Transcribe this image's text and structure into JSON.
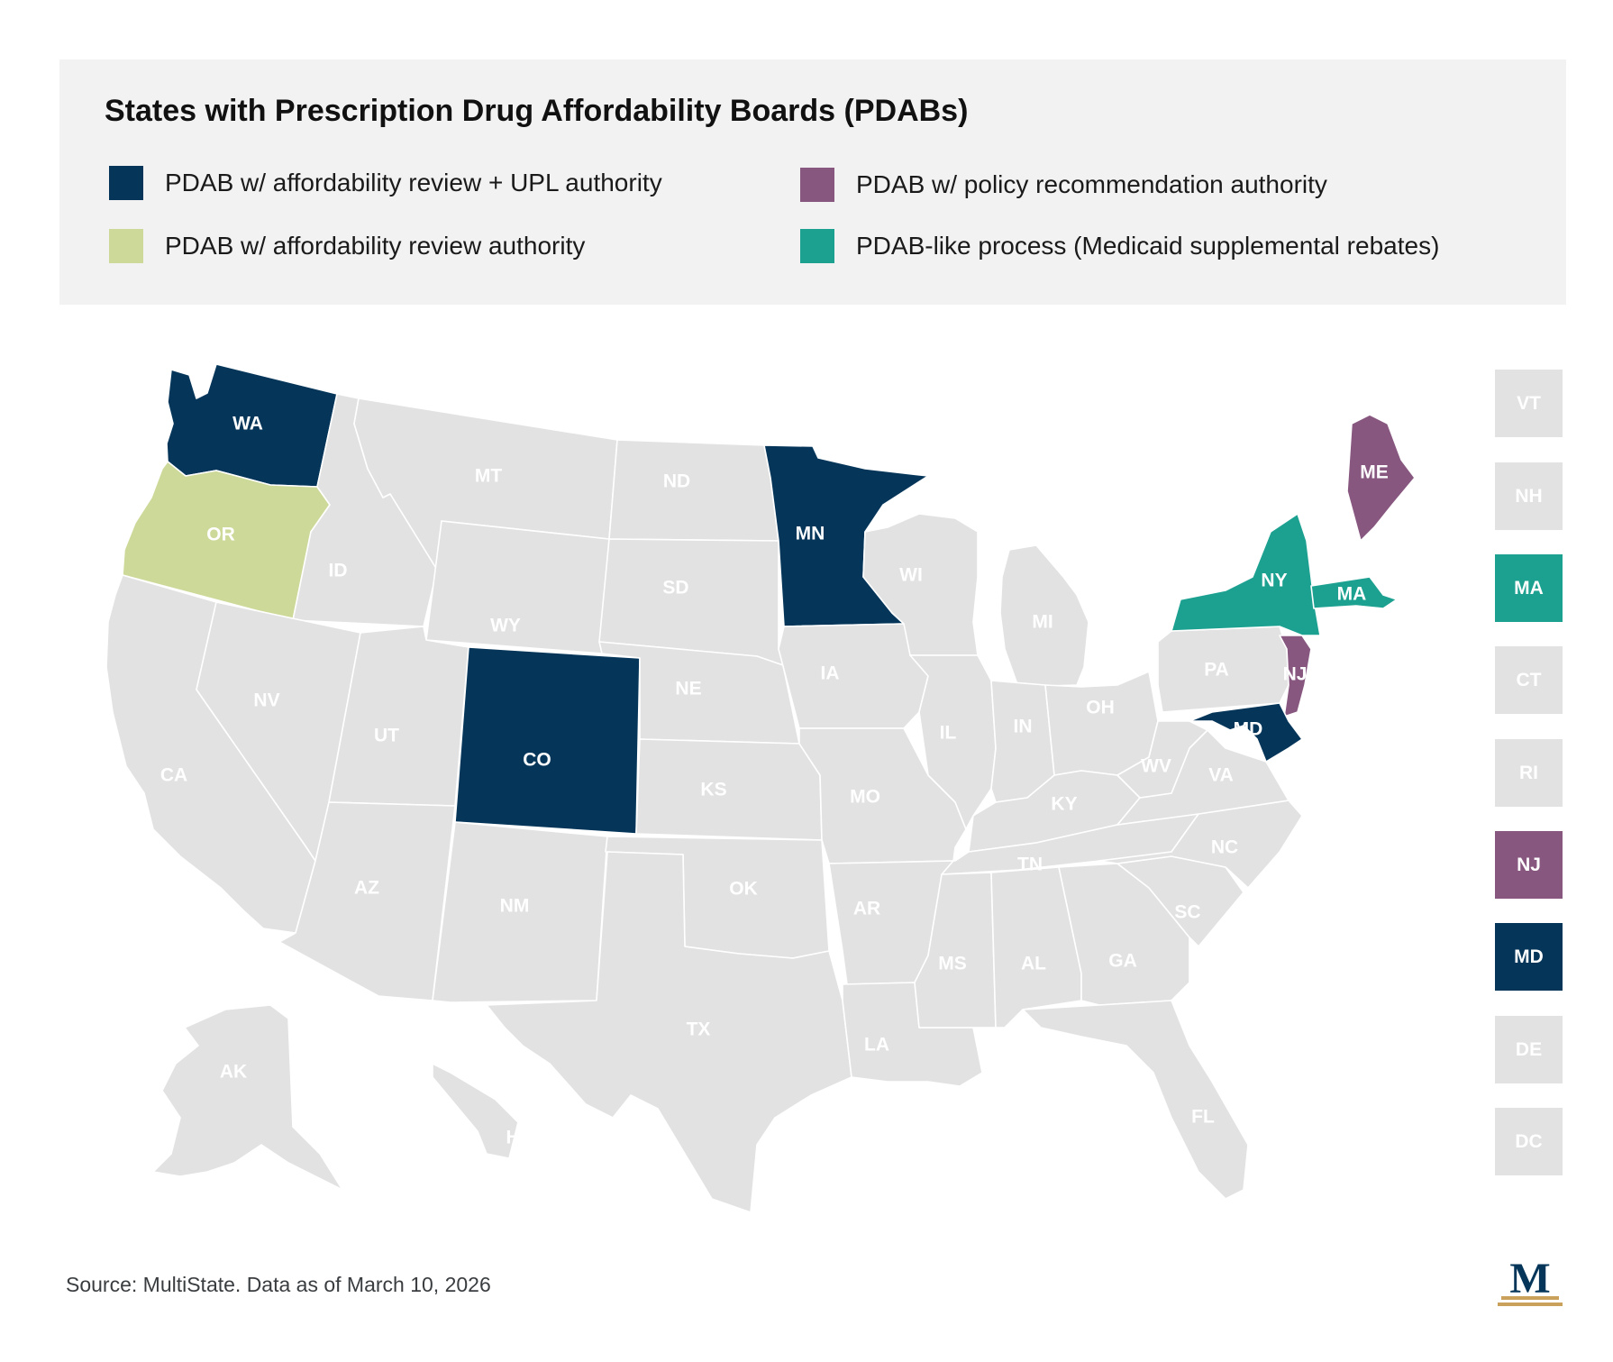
{
  "title": "States with Prescription Drug Affordability Boards (PDABs)",
  "colors": {
    "upl": "#05365a",
    "review": "#cdd999",
    "policy": "#87577f",
    "medicaid": "#1ca191",
    "none": "#e2e2e2",
    "label_dark": "#ffffff",
    "label_none": "#ffffff"
  },
  "legend": [
    {
      "key": "upl",
      "label": "PDAB w/ affordability review + UPL authority"
    },
    {
      "key": "review",
      "label": "PDAB w/ affordability review authority"
    },
    {
      "key": "policy",
      "label": "PDAB w/ policy recommendation authority"
    },
    {
      "key": "medicaid",
      "label": "PDAB-like process (Medicaid supplemental rebates)"
    }
  ],
  "states": [
    {
      "abbr": "WA",
      "status": "upl"
    },
    {
      "abbr": "OR",
      "status": "review"
    },
    {
      "abbr": "CA",
      "status": "none"
    },
    {
      "abbr": "ID",
      "status": "none"
    },
    {
      "abbr": "NV",
      "status": "none"
    },
    {
      "abbr": "MT",
      "status": "none"
    },
    {
      "abbr": "WY",
      "status": "none"
    },
    {
      "abbr": "UT",
      "status": "none"
    },
    {
      "abbr": "AZ",
      "status": "none"
    },
    {
      "abbr": "CO",
      "status": "upl"
    },
    {
      "abbr": "NM",
      "status": "none"
    },
    {
      "abbr": "ND",
      "status": "none"
    },
    {
      "abbr": "SD",
      "status": "none"
    },
    {
      "abbr": "NE",
      "status": "none"
    },
    {
      "abbr": "KS",
      "status": "none"
    },
    {
      "abbr": "OK",
      "status": "none"
    },
    {
      "abbr": "TX",
      "status": "none"
    },
    {
      "abbr": "MN",
      "status": "upl"
    },
    {
      "abbr": "IA",
      "status": "none"
    },
    {
      "abbr": "MO",
      "status": "none"
    },
    {
      "abbr": "AR",
      "status": "none"
    },
    {
      "abbr": "LA",
      "status": "none"
    },
    {
      "abbr": "WI",
      "status": "none"
    },
    {
      "abbr": "IL",
      "status": "none"
    },
    {
      "abbr": "MI",
      "status": "none"
    },
    {
      "abbr": "IN",
      "status": "none"
    },
    {
      "abbr": "OH",
      "status": "none"
    },
    {
      "abbr": "KY",
      "status": "none"
    },
    {
      "abbr": "TN",
      "status": "none"
    },
    {
      "abbr": "MS",
      "status": "none"
    },
    {
      "abbr": "AL",
      "status": "none"
    },
    {
      "abbr": "GA",
      "status": "none"
    },
    {
      "abbr": "FL",
      "status": "none"
    },
    {
      "abbr": "SC",
      "status": "none"
    },
    {
      "abbr": "NC",
      "status": "none"
    },
    {
      "abbr": "VA",
      "status": "none"
    },
    {
      "abbr": "WV",
      "status": "none"
    },
    {
      "abbr": "PA",
      "status": "none"
    },
    {
      "abbr": "NY",
      "status": "medicaid"
    },
    {
      "abbr": "NJ",
      "status": "policy"
    },
    {
      "abbr": "MD",
      "status": "upl"
    },
    {
      "abbr": "ME",
      "status": "policy"
    },
    {
      "abbr": "MA",
      "status": "medicaid"
    },
    {
      "abbr": "AK",
      "status": "none"
    },
    {
      "abbr": "HI",
      "status": "none"
    }
  ],
  "small_states": [
    {
      "abbr": "VT",
      "status": "none"
    },
    {
      "abbr": "NH",
      "status": "none"
    },
    {
      "abbr": "MA",
      "status": "medicaid"
    },
    {
      "abbr": "CT",
      "status": "none"
    },
    {
      "abbr": "RI",
      "status": "none"
    },
    {
      "abbr": "NJ",
      "status": "policy"
    },
    {
      "abbr": "MD",
      "status": "upl"
    },
    {
      "abbr": "DE",
      "status": "none"
    },
    {
      "abbr": "DC",
      "status": "none"
    }
  ],
  "source": "Source: MultiState. Data as of March 10, 2026",
  "logo": {
    "letter": "M",
    "icon": "multistate-logo-icon"
  }
}
